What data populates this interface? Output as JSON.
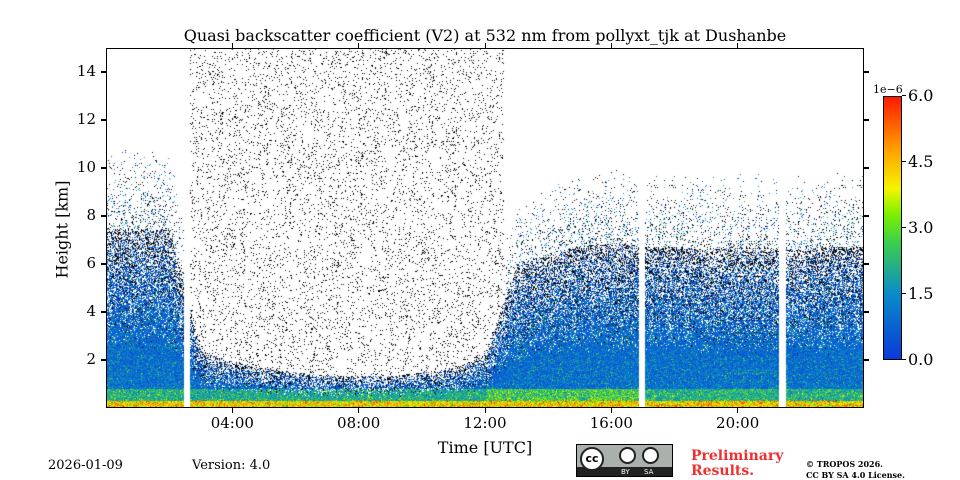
{
  "chart_data": {
    "type": "heatmap",
    "title": "Quasi backscatter coefficient (V2) at 532 nm from pollyxt_tjk at Dushanbe",
    "xlabel": "Time [UTC]",
    "ylabel": "Height [km]",
    "xlim_hours": [
      0,
      24
    ],
    "ylim_km": [
      0,
      15
    ],
    "x_ticks": [
      {
        "v": 4,
        "label": "04:00"
      },
      {
        "v": 8,
        "label": "08:00"
      },
      {
        "v": 12,
        "label": "12:00"
      },
      {
        "v": 16,
        "label": "16:00"
      },
      {
        "v": 20,
        "label": "20:00"
      }
    ],
    "y_ticks": [
      {
        "v": 2,
        "label": "2"
      },
      {
        "v": 4,
        "label": "4"
      },
      {
        "v": 6,
        "label": "6"
      },
      {
        "v": 8,
        "label": "8"
      },
      {
        "v": 10,
        "label": "10"
      },
      {
        "v": 12,
        "label": "12"
      },
      {
        "v": 14,
        "label": "14"
      }
    ],
    "colorbar": {
      "min": 0,
      "max": 6e-06,
      "exponent_label": "1e−6",
      "ticks": [
        "0.0",
        "1.5",
        "3.0",
        "4.5",
        "6.0"
      ]
    },
    "data_gaps_hours": [
      2.55,
      16.95,
      21.4
    ],
    "noisy_daytime_hours": [
      2.6,
      12.6
    ],
    "aerosol_layer_top_km_by_hour": [
      5,
      5,
      5,
      1.6,
      1.3,
      1.1,
      1,
      0.9,
      0.9,
      0.9,
      1,
      1.1,
      1.5,
      4,
      4.3,
      4.5,
      4.6,
      4.5,
      4.5,
      4.4,
      4.5,
      4.5,
      4.4,
      4.5
    ]
  },
  "footer": {
    "date": "2026-01-09",
    "version": "Version: 4.0",
    "preliminary": [
      "Preliminary",
      "Results."
    ],
    "copyright": [
      "© TROPOS 2026.",
      "CC BY SA 4.0 License."
    ],
    "cc_badge": [
      "cc",
      "BY",
      "SA"
    ]
  }
}
